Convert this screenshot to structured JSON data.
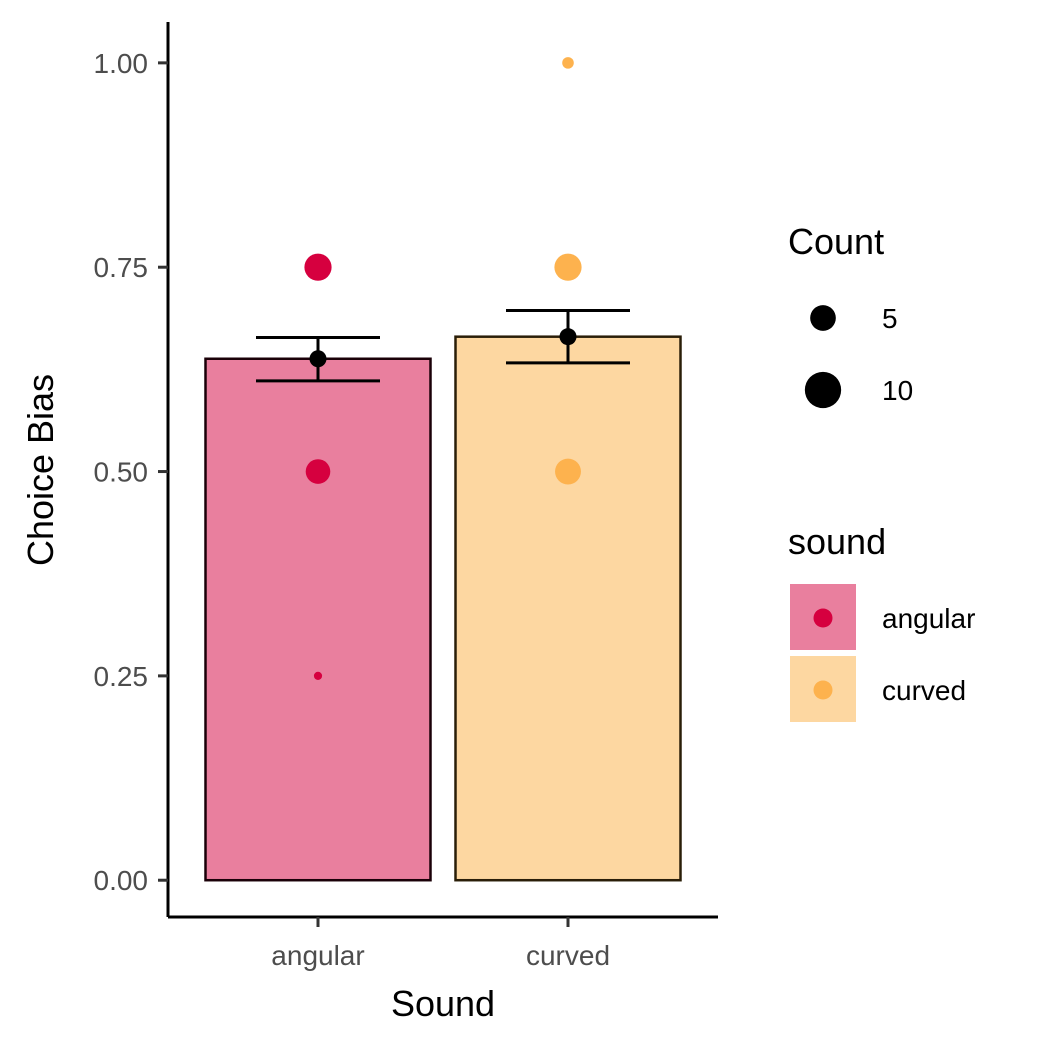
{
  "chart_data": {
    "type": "bar",
    "xlabel": "Sound",
    "ylabel": "Choice Bias",
    "ylim": [
      -0.045,
      1.05
    ],
    "y_ticks": [
      0.0,
      0.25,
      0.5,
      0.75,
      1.0
    ],
    "y_tick_labels": [
      "0.00",
      "0.25",
      "0.50",
      "0.75",
      "1.00"
    ],
    "categories": [
      "angular",
      "curved"
    ],
    "bars": [
      {
        "category": "angular",
        "mean": 0.638,
        "se_low": 0.611,
        "se_high": 0.664,
        "fill": "#E97F9E",
        "stroke": "#1a0008"
      },
      {
        "category": "curved",
        "mean": 0.665,
        "se_low": 0.633,
        "se_high": 0.697,
        "fill": "#FDD7A1",
        "stroke": "#2a1e08"
      }
    ],
    "points": [
      {
        "category": "angular",
        "y": 0.75,
        "count": 11
      },
      {
        "category": "angular",
        "y": 0.5,
        "count": 9
      },
      {
        "category": "angular",
        "y": 0.25,
        "count": 1
      },
      {
        "category": "curved",
        "y": 1.0,
        "count": 2
      },
      {
        "category": "curved",
        "y": 0.75,
        "count": 11
      },
      {
        "category": "curved",
        "y": 0.5,
        "count": 10
      }
    ],
    "point_colors": {
      "angular": "#D6003F",
      "curved": "#FDB24E"
    },
    "legend_count": {
      "title": "Count",
      "entries": [
        {
          "label": "5",
          "count": 5
        },
        {
          "label": "10",
          "count": 10
        }
      ]
    },
    "legend_sound": {
      "title": "sound",
      "entries": [
        {
          "label": "angular",
          "fill": "#E97F9E",
          "dot": "#D6003F"
        },
        {
          "label": "curved",
          "fill": "#FDD7A1",
          "dot": "#FDB24E"
        }
      ]
    },
    "legend_placement": "right",
    "grid": false
  }
}
